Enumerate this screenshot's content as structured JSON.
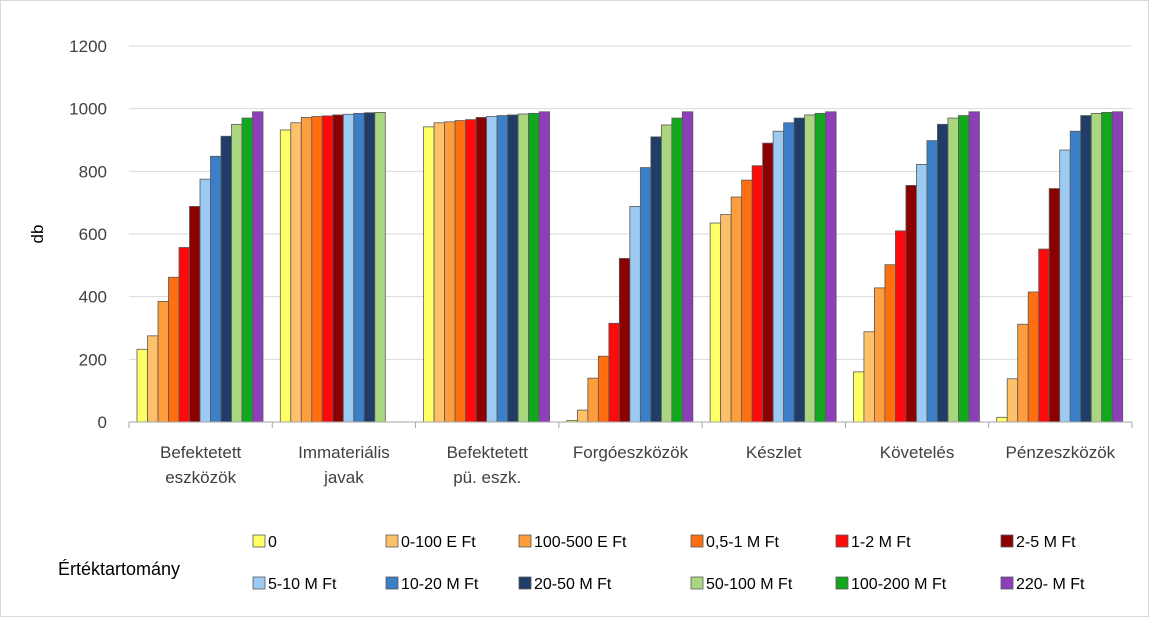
{
  "chart_data": {
    "type": "bar",
    "title": "",
    "xlabel": "",
    "ylabel": "db",
    "ylim": [
      0,
      1200
    ],
    "yticks": [
      0,
      200,
      400,
      600,
      800,
      1000,
      1200
    ],
    "grid": true,
    "legend_title": "Értéktartomány",
    "legend_position": "bottom",
    "categories": [
      [
        "Befektetett",
        "eszközök"
      ],
      [
        "Immateriális",
        "javak"
      ],
      [
        "Befektetett",
        "pü. eszk."
      ],
      [
        "Forgóeszközök"
      ],
      [
        "Készlet"
      ],
      [
        "Követelés"
      ],
      [
        "Pénzeszközök"
      ]
    ],
    "series": [
      {
        "name": "0",
        "color": "#ffff66",
        "values": [
          232,
          932,
          942,
          5,
          635,
          160,
          15
        ]
      },
      {
        "name": "0-100 E Ft",
        "color": "#ffc06a",
        "values": [
          275,
          955,
          955,
          38,
          662,
          288,
          138
        ]
      },
      {
        "name": "100-500 E Ft",
        "color": "#ff9c3c",
        "values": [
          385,
          972,
          958,
          140,
          718,
          428,
          312
        ]
      },
      {
        "name": "0,5-1 M Ft",
        "color": "#ff6f0f",
        "values": [
          462,
          975,
          962,
          210,
          772,
          502,
          415
        ]
      },
      {
        "name": "1-2 M Ft",
        "color": "#ff0a0a",
        "values": [
          557,
          977,
          965,
          315,
          818,
          610,
          552
        ]
      },
      {
        "name": "2-5 M Ft",
        "color": "#8b0000",
        "values": [
          688,
          980,
          972,
          522,
          890,
          755,
          745
        ]
      },
      {
        "name": "5-10 M Ft",
        "color": "#9ccaf2",
        "values": [
          775,
          982,
          975,
          688,
          928,
          822,
          868
        ]
      },
      {
        "name": "10-20 M Ft",
        "color": "#3a7fc8",
        "values": [
          848,
          985,
          978,
          812,
          955,
          898,
          928
        ]
      },
      {
        "name": "20-50 M Ft",
        "color": "#1f3d66",
        "values": [
          912,
          987,
          980,
          910,
          970,
          950,
          978
        ]
      },
      {
        "name": "50-100 M Ft",
        "color": "#a9d67f",
        "values": [
          950,
          988,
          983,
          948,
          980,
          970,
          985
        ]
      },
      {
        "name": "100-200 M Ft",
        "color": "#12a81e",
        "values": [
          970,
          null,
          985,
          970,
          985,
          978,
          988
        ]
      },
      {
        "name": "220- M Ft",
        "color": "#8c3fb8",
        "values": [
          990,
          null,
          990,
          990,
          990,
          990,
          990
        ]
      }
    ]
  }
}
